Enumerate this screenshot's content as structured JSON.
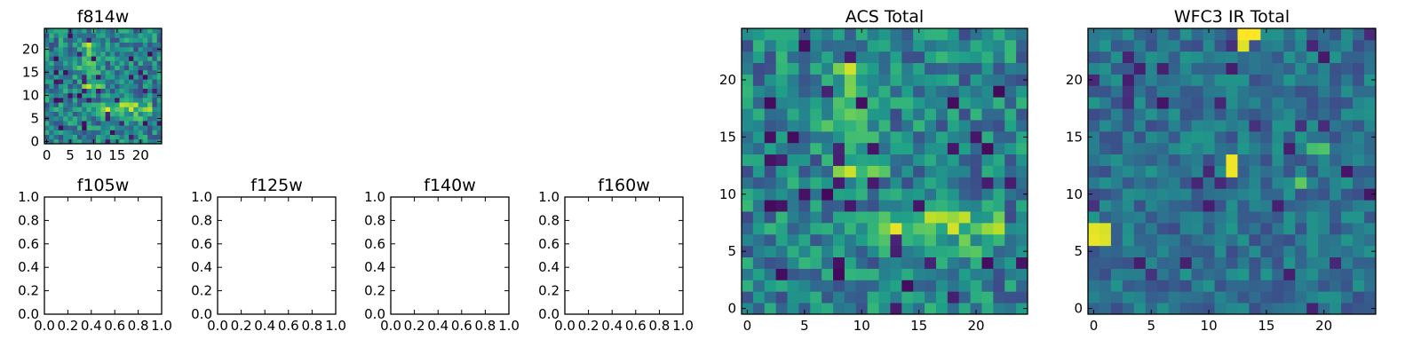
{
  "chart_data": [
    {
      "type": "heatmap",
      "title": "f814w",
      "colormap": "viridis",
      "grid_size": [
        25,
        25
      ],
      "xlim": [
        -0.5,
        24.5
      ],
      "ylim": [
        -0.5,
        24.5
      ],
      "xticks": [
        0,
        5,
        10,
        15,
        20
      ],
      "yticks": [
        0,
        5,
        10,
        15,
        20
      ],
      "values": "pixel image (same field as ACS Total)"
    },
    {
      "type": "heatmap",
      "title": "f105w",
      "xlim": [
        0.0,
        1.0
      ],
      "ylim": [
        0.0,
        1.0
      ],
      "xticks": [
        0.0,
        0.2,
        0.4,
        0.6,
        0.8,
        1.0
      ],
      "yticks": [
        0.0,
        0.2,
        0.4,
        0.6,
        0.8,
        1.0
      ],
      "values": []
    },
    {
      "type": "heatmap",
      "title": "f125w",
      "xlim": [
        0.0,
        1.0
      ],
      "ylim": [
        0.0,
        1.0
      ],
      "xticks": [
        0.0,
        0.2,
        0.4,
        0.6,
        0.8,
        1.0
      ],
      "yticks": [
        0.0,
        0.2,
        0.4,
        0.6,
        0.8,
        1.0
      ],
      "values": []
    },
    {
      "type": "heatmap",
      "title": "f140w",
      "xlim": [
        0.0,
        1.0
      ],
      "ylim": [
        0.0,
        1.0
      ],
      "xticks": [
        0.0,
        0.2,
        0.4,
        0.6,
        0.8,
        1.0
      ],
      "yticks": [
        0.0,
        0.2,
        0.4,
        0.6,
        0.8,
        1.0
      ],
      "values": []
    },
    {
      "type": "heatmap",
      "title": "f160w",
      "xlim": [
        0.0,
        1.0
      ],
      "ylim": [
        0.0,
        1.0
      ],
      "xticks": [
        0.0,
        0.2,
        0.4,
        0.6,
        0.8,
        1.0
      ],
      "yticks": [
        0.0,
        0.2,
        0.4,
        0.6,
        0.8,
        1.0
      ],
      "values": []
    },
    {
      "type": "heatmap",
      "title": "ACS Total",
      "colormap": "viridis",
      "grid_size": [
        25,
        25
      ],
      "xlim": [
        -0.5,
        24.5
      ],
      "ylim": [
        -0.5,
        24.5
      ],
      "xticks": [
        0,
        5,
        10,
        15,
        20
      ],
      "yticks": [
        0,
        5,
        10,
        15,
        20
      ],
      "values": "pixel image: noisy field with bright elongated feature near x=13-22, y=6-9 and near x=7-12, y=13-21"
    },
    {
      "type": "heatmap",
      "title": "WFC3 IR Total",
      "colormap": "viridis",
      "grid_size": [
        25,
        25
      ],
      "xlim": [
        -0.5,
        24.5
      ],
      "ylim": [
        -0.5,
        24.5
      ],
      "xticks": [
        0,
        5,
        10,
        15,
        20
      ],
      "yticks": [
        0,
        5,
        10,
        15,
        20
      ],
      "values": "pixel image: mostly dim field, bright pixels near (13-14, 24), (12, 12-13), (0-1, 6-7)"
    }
  ]
}
